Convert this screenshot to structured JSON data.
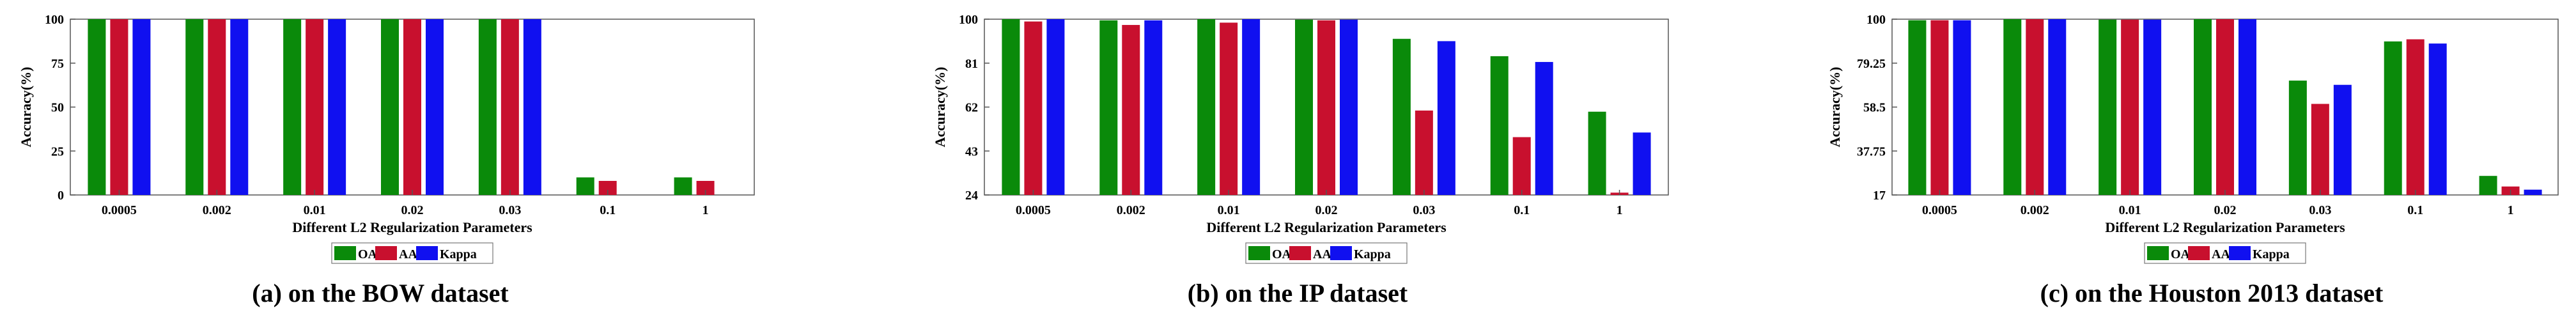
{
  "figure": {
    "colors": {
      "OA": "#0a8a0a",
      "AA": "#c8102e",
      "Kappa": "#1010f0"
    },
    "legend": [
      "OA",
      "AA",
      "Kappa"
    ]
  },
  "chart_data": [
    {
      "type": "bar",
      "caption": "(a) on the BOW dataset",
      "xlabel": "Different L2 Regularization Parameters",
      "ylabel": "Accuracy(%)",
      "categories": [
        "0.0005",
        "0.002",
        "0.01",
        "0.02",
        "0.03",
        "0.1",
        "1"
      ],
      "ylim": [
        0,
        100
      ],
      "yticks": [
        "0",
        "25",
        "50",
        "75",
        "100"
      ],
      "legend_position": "bottom-center",
      "series": [
        {
          "name": "OA",
          "values": [
            100,
            100,
            100,
            100,
            100,
            10,
            10
          ]
        },
        {
          "name": "AA",
          "values": [
            100,
            100,
            100,
            100,
            100,
            8,
            8
          ]
        },
        {
          "name": "Kappa",
          "values": [
            100,
            100,
            100,
            100,
            100,
            0,
            0
          ]
        }
      ]
    },
    {
      "type": "bar",
      "caption": "(b) on the IP dataset",
      "xlabel": "Different L2 Regularization Parameters",
      "ylabel": "Accuracy(%)",
      "categories": [
        "0.0005",
        "0.002",
        "0.01",
        "0.02",
        "0.03",
        "0.1",
        "1"
      ],
      "ylim": [
        24,
        100
      ],
      "yticks": [
        "24",
        "43",
        "62",
        "81",
        "100"
      ],
      "legend_position": "bottom-center",
      "series": [
        {
          "name": "OA",
          "values": [
            100,
            99.5,
            100,
            99.8,
            91.5,
            84,
            60
          ]
        },
        {
          "name": "AA",
          "values": [
            99,
            97.5,
            98.5,
            99.5,
            60.5,
            49,
            25
          ]
        },
        {
          "name": "Kappa",
          "values": [
            100,
            99.5,
            100,
            99.8,
            90.5,
            81.5,
            51
          ]
        }
      ]
    },
    {
      "type": "bar",
      "caption": "(c) on the Houston 2013 dataset",
      "xlabel": "Different L2 Regularization Parameters",
      "ylabel": "Accuracy(%)",
      "categories": [
        "0.0005",
        "0.002",
        "0.01",
        "0.02",
        "0.03",
        "0.1",
        "1"
      ],
      "ylim": [
        17,
        100
      ],
      "yticks": [
        "17",
        "37.75",
        "58.5",
        "79.25",
        "100"
      ],
      "legend_position": "bottom-center",
      "series": [
        {
          "name": "OA",
          "values": [
            99.5,
            100,
            99.8,
            100,
            71,
            89.5,
            26
          ]
        },
        {
          "name": "AA",
          "values": [
            99.5,
            100,
            99.8,
            100,
            60,
            90.5,
            21
          ]
        },
        {
          "name": "Kappa",
          "values": [
            99.5,
            100,
            99.8,
            100,
            69,
            88.5,
            19.5
          ]
        }
      ]
    }
  ]
}
